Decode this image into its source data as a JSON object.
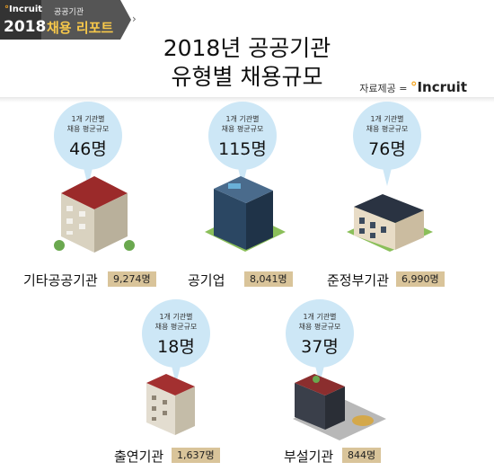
{
  "badge": {
    "brand_pre": "°",
    "brand": "Incruit",
    "year": "2018",
    "subtitle": "공공기관",
    "report": "채용 리포트",
    "arrow": "›"
  },
  "title": {
    "line1": "2018년 공공기관",
    "line2": "유형별 채용규모"
  },
  "source": {
    "label": "자료제공 =",
    "brand_pre": "°",
    "brand": "Incruit"
  },
  "bubble_caption": {
    "line1": "1개 기관별",
    "line2": "채용 평균규모"
  },
  "groups": [
    {
      "name": "기타공공기관",
      "avg": "46명",
      "total": "9,274명"
    },
    {
      "name": "공기업",
      "avg": "115명",
      "total": "8,041명"
    },
    {
      "name": "준정부기관",
      "avg": "76명",
      "total": "6,990명"
    },
    {
      "name": "출연기관",
      "avg": "18명",
      "total": "1,637명"
    },
    {
      "name": "부설기관",
      "avg": "37명",
      "total": "844명"
    }
  ]
}
